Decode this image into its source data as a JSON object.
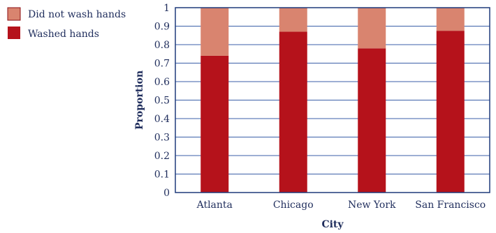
{
  "chart_data": {
    "type": "bar",
    "stacked": true,
    "categories": [
      "Atlanta",
      "Chicago",
      "New York",
      "San Francisco"
    ],
    "series": [
      {
        "name": "Washed hands",
        "values": [
          0.74,
          0.87,
          0.78,
          0.875
        ],
        "color": "#b5121b"
      },
      {
        "name": "Did not wash hands",
        "values": [
          0.26,
          0.13,
          0.22,
          0.125
        ],
        "color": "#d9846f"
      }
    ],
    "xlabel": "City",
    "ylabel": "Proportion",
    "ylim": [
      0,
      1
    ],
    "yticks": [
      "0",
      "0.1",
      "0.2",
      "0.3",
      "0.4",
      "0.5",
      "0.6",
      "0.7",
      "0.8",
      "0.9",
      "1"
    ],
    "grid": true,
    "legend_position": "top-left",
    "axis_color": "#1f3a7a"
  }
}
